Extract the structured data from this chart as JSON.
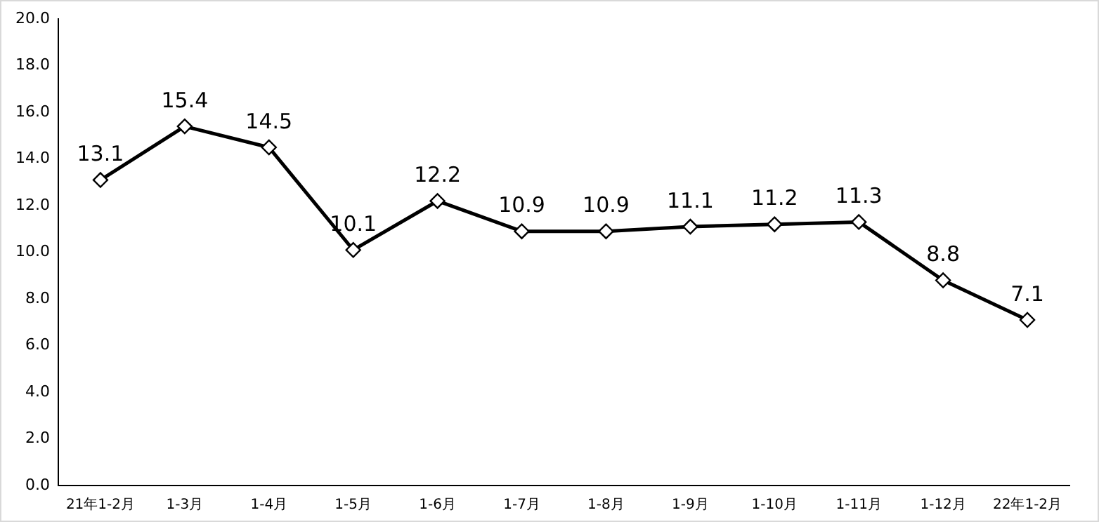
{
  "chart_data": {
    "type": "line",
    "categories": [
      "21年1-2月",
      "1-3月",
      "1-4月",
      "1-5月",
      "1-6月",
      "1-7月",
      "1-8月",
      "1-9月",
      "1-10月",
      "1-11月",
      "1-12月",
      "22年1-2月"
    ],
    "series": [
      {
        "color": "#000000",
        "values": [
          13.1,
          15.4,
          14.5,
          10.1,
          12.2,
          10.9,
          10.9,
          11.1,
          11.2,
          11.3,
          8.8,
          7.1
        ]
      }
    ],
    "ylim": [
      0,
      20
    ],
    "yticks": [
      {
        "value": 0,
        "label": "0.0"
      },
      {
        "value": 2,
        "label": "2.0"
      },
      {
        "value": 4,
        "label": "4.0"
      },
      {
        "value": 6,
        "label": "6.0"
      },
      {
        "value": 8,
        "label": "8.0"
      },
      {
        "value": 10,
        "label": "10.0"
      },
      {
        "value": 12,
        "label": "12.0"
      },
      {
        "value": 14,
        "label": "14.0"
      },
      {
        "value": 16,
        "label": "16.0"
      },
      {
        "value": 18,
        "label": "18.0"
      },
      {
        "value": 20,
        "label": "20.0"
      }
    ],
    "grid": false,
    "legend": false,
    "marker": "diamond",
    "line_style": "solid",
    "data_labels": true
  }
}
